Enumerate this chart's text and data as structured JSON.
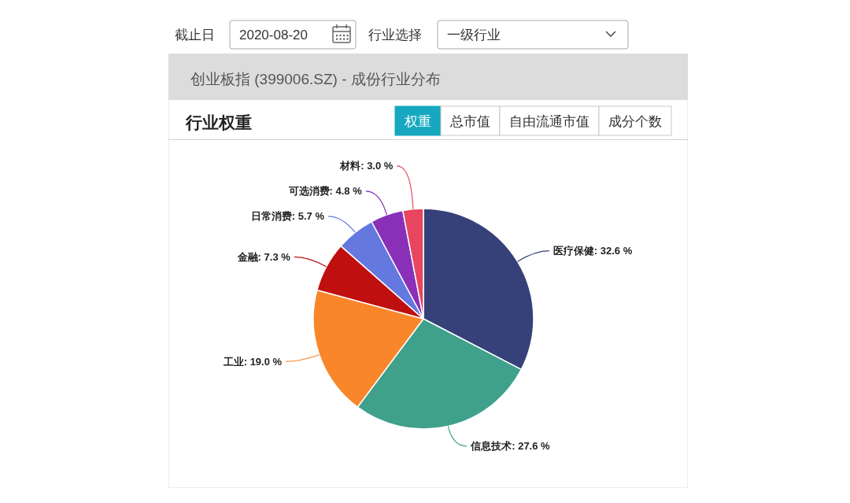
{
  "chart_data": {
    "type": "pie",
    "title": "行业权重",
    "subtitle": "创业板指 (399006.SZ) - 成份行业分布",
    "categories": [
      "医疗保健",
      "信息技术",
      "工业",
      "金融",
      "日常消费",
      "可选消费",
      "材料"
    ],
    "values": [
      32.6,
      27.6,
      19.0,
      7.3,
      5.7,
      4.8,
      3.0
    ],
    "colors": [
      "#354178",
      "#3fa08c",
      "#f9862a",
      "#c00f0f",
      "#6478e0",
      "#8a30b8",
      "#e84560"
    ],
    "value_labels": [
      "32.6 %",
      "27.6 %",
      "19.0 %",
      "7.3 %",
      "5.7 %",
      "4.8 %",
      "3.0 %"
    ],
    "annotations": [
      "截止日",
      "2020-08-20",
      "行业选择",
      "一级行业",
      "权重",
      "总市值",
      "自由流通市值",
      "成分个数"
    ]
  }
}
